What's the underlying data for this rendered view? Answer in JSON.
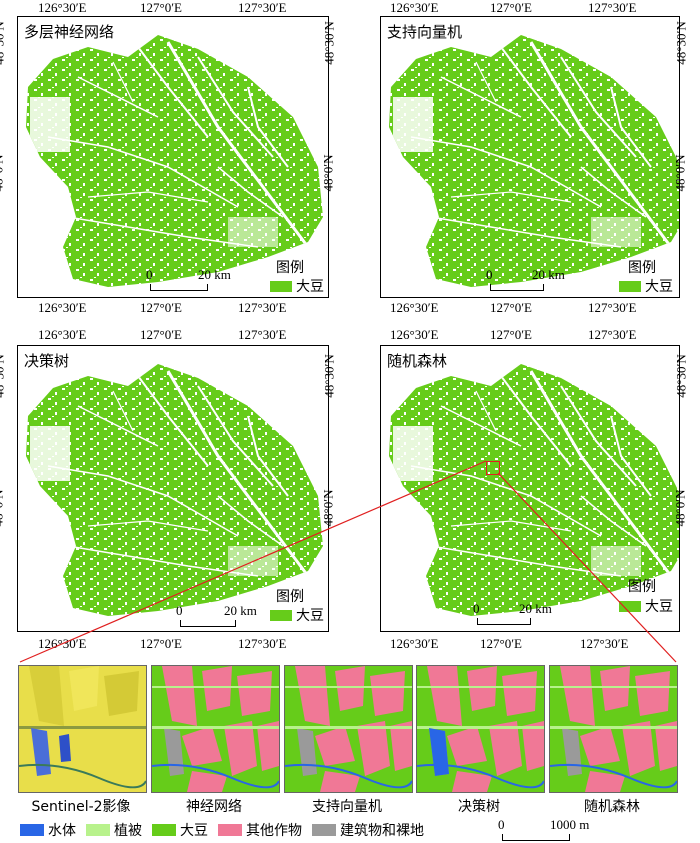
{
  "colors": {
    "soybean": "#66CC1A",
    "water": "#2966E6",
    "vegetation": "#B8F28C",
    "other_crops": "#F07896",
    "buildings": "#9A9A9A",
    "sentinel_bg": "#E8DE4A",
    "zoom_line": "#E02020"
  },
  "panels": [
    {
      "title": "多层神经网络"
    },
    {
      "title": "支持向量机"
    },
    {
      "title": "决策树"
    },
    {
      "title": "随机森林"
    }
  ],
  "ticks": {
    "lon": [
      "126°30′E",
      "127°0′E",
      "127°30′E"
    ],
    "lat": [
      "48°30′N",
      "48°0′N"
    ]
  },
  "legend": {
    "title": "图例",
    "item": "大豆"
  },
  "scale": {
    "zero": "0",
    "end": "20 km"
  },
  "thumbnails": [
    "Sentinel-2影像",
    "神经网络",
    "支持向量机",
    "决策树",
    "随机森林"
  ],
  "bottom_legend": [
    "水体",
    "植被",
    "大豆",
    "其他作物",
    "建筑物和裸地"
  ],
  "bottom_scale": {
    "zero": "0",
    "end": "1000 m"
  }
}
